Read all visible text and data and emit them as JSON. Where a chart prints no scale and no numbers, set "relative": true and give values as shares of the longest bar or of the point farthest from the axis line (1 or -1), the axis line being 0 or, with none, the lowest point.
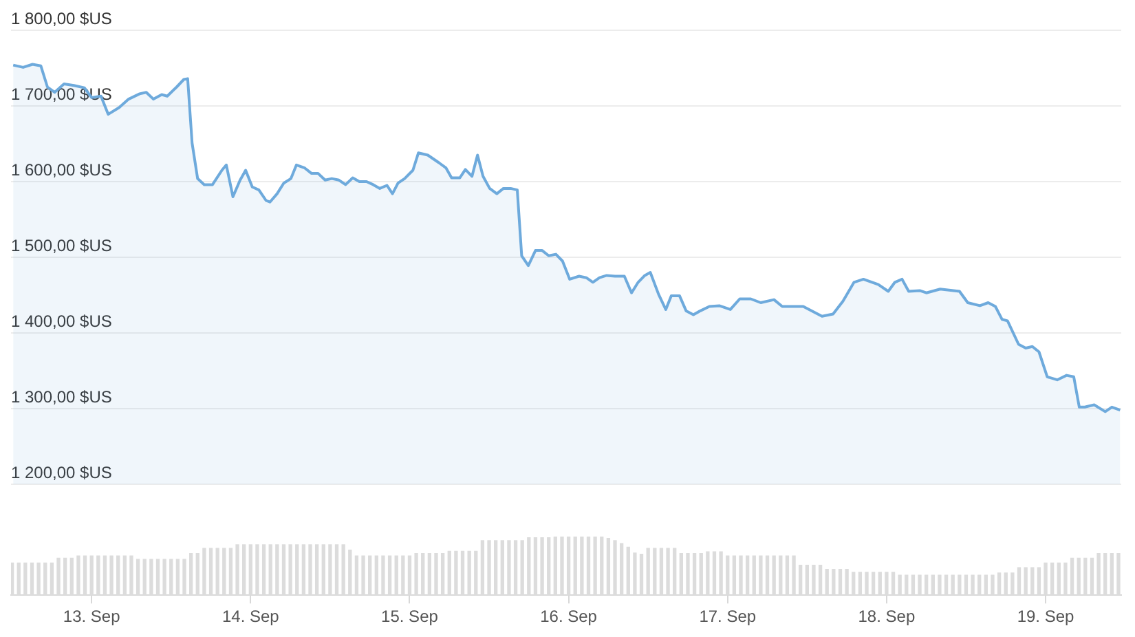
{
  "chart_data": [
    {
      "type": "area",
      "color": "#6eaadc",
      "x": [
        "--09-12T12:10",
        "--09-12T13:40",
        "--09-12T15:05",
        "--09-12T16:20",
        "--09-12T17:20",
        "--09-12T18:25",
        "--09-12T19:50",
        "--09-12T21:20",
        "--09-12T22:55",
        "--09-13T00:00",
        "--09-13T01:25",
        "--09-13T02:30",
        "--09-13T04:10",
        "--09-13T05:35",
        "--09-13T07:15",
        "--09-13T08:15",
        "--09-13T09:20",
        "--09-13T10:35",
        "--09-13T11:25",
        "--09-13T12:50",
        "--09-13T13:55",
        "--09-13T14:30",
        "--09-13T15:10",
        "--09-13T16:00",
        "--09-13T17:00",
        "--09-13T18:15",
        "--09-13T19:40",
        "--09-13T20:20",
        "--09-13T21:20",
        "--09-13T22:25",
        "--09-13T23:15",
        "--09-14T00:15",
        "--09-14T01:15",
        "--09-14T02:20",
        "--09-14T02:55",
        "--09-14T04:00",
        "--09-14T05:00",
        "--09-14T06:05",
        "--09-14T06:55",
        "--09-14T08:10",
        "--09-14T09:10",
        "--09-14T10:10",
        "--09-14T11:15",
        "--09-14T12:15",
        "--09-14T13:20",
        "--09-14T14:20",
        "--09-14T15:25",
        "--09-14T16:25",
        "--09-14T17:30",
        "--09-14T18:30",
        "--09-14T19:30",
        "--09-14T20:35",
        "--09-14T21:25",
        "--09-14T22:15",
        "--09-14T23:15",
        "--09-15T00:30",
        "--09-15T01:20",
        "--09-15T02:45",
        "--09-15T04:25",
        "--09-15T05:30",
        "--09-15T06:20",
        "--09-15T07:35",
        "--09-15T08:25",
        "--09-15T09:25",
        "--09-15T10:15",
        "--09-15T11:05",
        "--09-15T12:05",
        "--09-15T13:10",
        "--09-15T14:10",
        "--09-15T15:15",
        "--09-15T16:15",
        "--09-15T16:55",
        "--09-15T17:55",
        "--09-15T19:00",
        "--09-15T20:00",
        "--09-15T21:00",
        "--09-15T22:05",
        "--09-15T23:05",
        "--09-16T00:10",
        "--09-16T01:35",
        "--09-16T02:40",
        "--09-16T03:40",
        "--09-16T04:40",
        "--09-16T05:45",
        "--09-16T07:00",
        "--09-16T08:25",
        "--09-16T09:30",
        "--09-16T10:30",
        "--09-16T11:30",
        "--09-16T12:20",
        "--09-16T13:35",
        "--09-16T14:40",
        "--09-16T15:30",
        "--09-16T16:45",
        "--09-16T17:45",
        "--09-16T18:50",
        "--09-16T19:50",
        "--09-16T21:15",
        "--09-16T22:45",
        "--09-17T00:25",
        "--09-17T01:50",
        "--09-17T03:30",
        "--09-17T05:00",
        "--09-17T07:00",
        "--09-17T08:15",
        "--09-17T11:25",
        "--09-17T14:15",
        "--09-17T15:55",
        "--09-17T17:25",
        "--09-17T19:05",
        "--09-17T20:30",
        "--09-17T22:45",
        "--09-18T00:15",
        "--09-18T01:15",
        "--09-18T02:20",
        "--09-18T03:20",
        "--09-18T05:00",
        "--09-18T06:00",
        "--09-18T08:05",
        "--09-18T11:00",
        "--09-18T12:15",
        "--09-18T14:05",
        "--09-18T15:20",
        "--09-18T16:25",
        "--09-18T17:25",
        "--09-18T18:15",
        "--09-18T19:55",
        "--09-18T21:00",
        "--09-18T22:00",
        "--09-18T23:00",
        "--09-19T00:15",
        "--09-19T01:45",
        "--09-19T03:10",
        "--09-19T04:15",
        "--09-19T05:05",
        "--09-19T05:55",
        "--09-19T07:20",
        "--09-19T09:00",
        "--09-19T10:00",
        "--09-19T11:15"
      ],
      "values": [
        1754,
        1751,
        1755,
        1753,
        1725,
        1718,
        1729,
        1727,
        1724,
        1711,
        1713,
        1689,
        1698,
        1709,
        1716,
        1718,
        1709,
        1715,
        1713,
        1725,
        1735,
        1736,
        1651,
        1604,
        1596,
        1596,
        1615,
        1622,
        1580,
        1602,
        1615,
        1593,
        1589,
        1575,
        1573,
        1584,
        1598,
        1604,
        1622,
        1618,
        1611,
        1611,
        1602,
        1604,
        1602,
        1596,
        1605,
        1600,
        1600,
        1596,
        1591,
        1595,
        1584,
        1598,
        1604,
        1615,
        1638,
        1635,
        1625,
        1618,
        1605,
        1605,
        1616,
        1607,
        1635,
        1607,
        1591,
        1584,
        1591,
        1591,
        1589,
        1502,
        1489,
        1509,
        1509,
        1502,
        1504,
        1495,
        1471,
        1475,
        1473,
        1467,
        1473,
        1476,
        1475,
        1475,
        1453,
        1467,
        1476,
        1480,
        1451,
        1431,
        1449,
        1449,
        1429,
        1424,
        1429,
        1435,
        1436,
        1431,
        1445,
        1445,
        1440,
        1444,
        1435,
        1435,
        1422,
        1425,
        1442,
        1467,
        1471,
        1464,
        1455,
        1467,
        1471,
        1455,
        1456,
        1453,
        1458,
        1455,
        1440,
        1436,
        1440,
        1435,
        1418,
        1416,
        1385,
        1380,
        1382,
        1375,
        1342,
        1338,
        1344,
        1342,
        1302,
        1302,
        1305,
        1296,
        1302,
        1298
      ],
      "xlim": [
        "--09-12T11:50",
        "--09-19T11:25"
      ],
      "xticks": [
        {
          "value": "--09-13",
          "label": "13. Sep"
        },
        {
          "value": "--09-14",
          "label": "14. Sep"
        },
        {
          "value": "--09-15",
          "label": "15. Sep"
        },
        {
          "value": "--09-16",
          "label": "16. Sep"
        },
        {
          "value": "--09-17",
          "label": "17. Sep"
        },
        {
          "value": "--09-18",
          "label": "18. Sep"
        },
        {
          "value": "--09-19",
          "label": "19. Sep"
        }
      ],
      "ylim": [
        1200,
        1800
      ],
      "yticks": [
        {
          "value": 1200,
          "label": "1 200,00 $US"
        },
        {
          "value": 1300,
          "label": "1 300,00 $US"
        },
        {
          "value": 1400,
          "label": "1 400,00 $US"
        },
        {
          "value": 1500,
          "label": "1 500,00 $US"
        },
        {
          "value": 1600,
          "label": "1 600,00 $US"
        },
        {
          "value": 1700,
          "label": "1 700,00 $US"
        },
        {
          "value": 1800,
          "label": "1 800,00 $US"
        }
      ],
      "grid": "y",
      "tick_labels": "y"
    },
    {
      "type": "bar",
      "color": "#dcdcdc",
      "relative": true,
      "tick_labels": "x",
      "x": [
        "--09-12T12:00",
        "--09-12T13:00",
        "--09-12T14:00",
        "--09-12T15:00",
        "--09-12T16:00",
        "--09-12T17:00",
        "--09-12T18:00",
        "--09-12T19:00",
        "--09-12T20:00",
        "--09-12T21:00",
        "--09-12T22:00",
        "--09-12T23:00",
        "--09-13T00:00",
        "--09-13T01:00",
        "--09-13T02:00",
        "--09-13T03:00",
        "--09-13T04:00",
        "--09-13T05:00",
        "--09-13T06:00",
        "--09-13T07:00",
        "--09-13T08:00",
        "--09-13T09:00",
        "--09-13T10:00",
        "--09-13T11:00",
        "--09-13T12:00",
        "--09-13T13:00",
        "--09-13T14:00",
        "--09-13T15:00",
        "--09-13T16:00",
        "--09-13T17:00",
        "--09-13T18:00",
        "--09-13T19:00",
        "--09-13T20:00",
        "--09-13T21:00",
        "--09-13T22:00",
        "--09-13T23:00",
        "--09-14T00:00",
        "--09-14T01:00",
        "--09-14T02:00",
        "--09-14T03:00",
        "--09-14T04:00",
        "--09-14T05:00",
        "--09-14T06:00",
        "--09-14T07:00",
        "--09-14T08:00",
        "--09-14T09:00",
        "--09-14T10:00",
        "--09-14T11:00",
        "--09-14T12:00",
        "--09-14T13:00",
        "--09-14T14:00",
        "--09-14T15:00",
        "--09-14T16:00",
        "--09-14T17:00",
        "--09-14T18:00",
        "--09-14T19:00",
        "--09-14T20:00",
        "--09-14T21:00",
        "--09-14T22:00",
        "--09-14T23:00",
        "--09-15T00:00",
        "--09-15T01:00",
        "--09-15T02:00",
        "--09-15T03:00",
        "--09-15T04:00",
        "--09-15T05:00",
        "--09-15T06:00",
        "--09-15T07:00",
        "--09-15T08:00",
        "--09-15T09:00",
        "--09-15T10:00",
        "--09-15T11:00",
        "--09-15T12:00",
        "--09-15T13:00",
        "--09-15T14:00",
        "--09-15T15:00",
        "--09-15T16:00",
        "--09-15T17:00",
        "--09-15T18:00",
        "--09-15T19:00",
        "--09-15T20:00",
        "--09-15T21:00",
        "--09-15T22:00",
        "--09-15T23:00",
        "--09-16T00:00",
        "--09-16T01:00",
        "--09-16T02:00",
        "--09-16T03:00",
        "--09-16T04:00",
        "--09-16T05:00",
        "--09-16T06:00",
        "--09-16T07:00",
        "--09-16T08:00",
        "--09-16T09:00",
        "--09-16T10:00",
        "--09-16T11:00",
        "--09-16T12:00",
        "--09-16T13:00",
        "--09-16T14:00",
        "--09-16T15:00",
        "--09-16T16:00",
        "--09-16T17:00",
        "--09-16T18:00",
        "--09-16T19:00",
        "--09-16T20:00",
        "--09-16T21:00",
        "--09-16T22:00",
        "--09-16T23:00",
        "--09-17T00:00",
        "--09-17T01:00",
        "--09-17T02:00",
        "--09-17T03:00",
        "--09-17T04:00",
        "--09-17T05:00",
        "--09-17T06:00",
        "--09-17T07:00",
        "--09-17T08:00",
        "--09-17T09:00",
        "--09-17T10:00",
        "--09-17T11:00",
        "--09-17T12:00",
        "--09-17T13:00",
        "--09-17T14:00",
        "--09-17T15:00",
        "--09-17T16:00",
        "--09-17T17:00",
        "--09-17T18:00",
        "--09-17T19:00",
        "--09-17T20:00",
        "--09-17T21:00",
        "--09-17T22:00",
        "--09-17T23:00",
        "--09-18T00:00",
        "--09-18T01:00",
        "--09-18T02:00",
        "--09-18T03:00",
        "--09-18T04:00",
        "--09-18T05:00",
        "--09-18T06:00",
        "--09-18T07:00",
        "--09-18T08:00",
        "--09-18T09:00",
        "--09-18T10:00",
        "--09-18T11:00",
        "--09-18T12:00",
        "--09-18T13:00",
        "--09-18T14:00",
        "--09-18T15:00",
        "--09-18T16:00",
        "--09-18T17:00",
        "--09-18T18:00",
        "--09-18T19:00",
        "--09-18T20:00",
        "--09-18T21:00",
        "--09-18T22:00",
        "--09-18T23:00",
        "--09-19T00:00",
        "--09-19T01:00",
        "--09-19T02:00",
        "--09-19T03:00",
        "--09-19T04:00",
        "--09-19T05:00",
        "--09-19T06:00",
        "--09-19T07:00",
        "--09-19T08:00",
        "--09-19T09:00",
        "--09-19T10:00",
        "--09-19T11:00"
      ],
      "values": [
        0.55,
        0.55,
        0.55,
        0.55,
        0.55,
        0.55,
        0.55,
        0.63,
        0.63,
        0.63,
        0.67,
        0.67,
        0.67,
        0.67,
        0.67,
        0.67,
        0.67,
        0.67,
        0.67,
        0.61,
        0.61,
        0.61,
        0.61,
        0.61,
        0.61,
        0.61,
        0.61,
        0.71,
        0.71,
        0.8,
        0.8,
        0.8,
        0.8,
        0.8,
        0.86,
        0.86,
        0.86,
        0.86,
        0.86,
        0.86,
        0.86,
        0.86,
        0.86,
        0.86,
        0.86,
        0.86,
        0.86,
        0.86,
        0.86,
        0.86,
        0.86,
        0.77,
        0.67,
        0.67,
        0.67,
        0.67,
        0.67,
        0.67,
        0.67,
        0.67,
        0.67,
        0.71,
        0.71,
        0.71,
        0.71,
        0.71,
        0.75,
        0.75,
        0.75,
        0.75,
        0.75,
        0.93,
        0.93,
        0.93,
        0.93,
        0.93,
        0.93,
        0.93,
        0.98,
        0.98,
        0.98,
        0.98,
        1,
        1,
        1,
        1,
        1,
        1,
        1,
        1,
        0.97,
        0.93,
        0.88,
        0.82,
        0.72,
        0.7,
        0.8,
        0.8,
        0.8,
        0.8,
        0.8,
        0.71,
        0.71,
        0.71,
        0.71,
        0.74,
        0.74,
        0.74,
        0.67,
        0.67,
        0.67,
        0.67,
        0.67,
        0.67,
        0.67,
        0.67,
        0.67,
        0.67,
        0.67,
        0.51,
        0.51,
        0.51,
        0.51,
        0.44,
        0.44,
        0.44,
        0.44,
        0.39,
        0.39,
        0.39,
        0.39,
        0.39,
        0.39,
        0.39,
        0.34,
        0.34,
        0.34,
        0.34,
        0.34,
        0.34,
        0.34,
        0.34,
        0.34,
        0.34,
        0.34,
        0.34,
        0.34,
        0.34,
        0.34,
        0.38,
        0.38,
        0.38,
        0.47,
        0.47,
        0.47,
        0.47,
        0.55,
        0.55,
        0.55,
        0.55,
        0.63,
        0.63,
        0.63,
        0.63,
        0.71,
        0.71,
        0.71,
        0.71
      ],
      "xlim": [
        "--09-12T11:50",
        "--09-19T11:25"
      ],
      "xticks": [
        {
          "value": "--09-13",
          "label": "13. Sep"
        },
        {
          "value": "--09-14",
          "label": "14. Sep"
        },
        {
          "value": "--09-15",
          "label": "15. Sep"
        },
        {
          "value": "--09-16",
          "label": "16. Sep"
        },
        {
          "value": "--09-17",
          "label": "17. Sep"
        },
        {
          "value": "--09-18",
          "label": "18. Sep"
        },
        {
          "value": "--09-19",
          "label": "19. Sep"
        }
      ]
    }
  ]
}
